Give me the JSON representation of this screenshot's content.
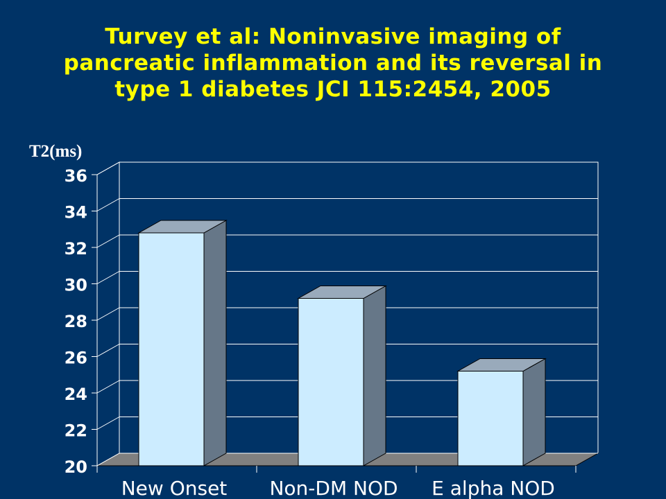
{
  "title_lines": [
    "Turvey et al:  Noninvasive imaging of",
    "pancreatic inflammation and its reversal in",
    "type 1 diabetes  JCI 115:2454, 2005"
  ],
  "colors": {
    "background": "#003366",
    "title": "#FFFF00",
    "bar_front": "#CCECFF",
    "bar_top": "#99AABB",
    "bar_side": "#667788",
    "floor": "#808080",
    "gridline": "#FFFFFF",
    "text": "#FFFFFF"
  },
  "chart_data": {
    "type": "bar",
    "style": "3d",
    "categories": [
      "New Onset",
      "Non-DM NOD",
      "E alpha NOD"
    ],
    "values": [
      32.8,
      29.2,
      25.2
    ],
    "ylabel": "T2(ms)",
    "ylim": [
      20,
      36
    ],
    "yticks": [
      "20",
      "22",
      "24",
      "26",
      "28",
      "30",
      "32",
      "34",
      "36"
    ],
    "grid": true,
    "legend": "none"
  }
}
